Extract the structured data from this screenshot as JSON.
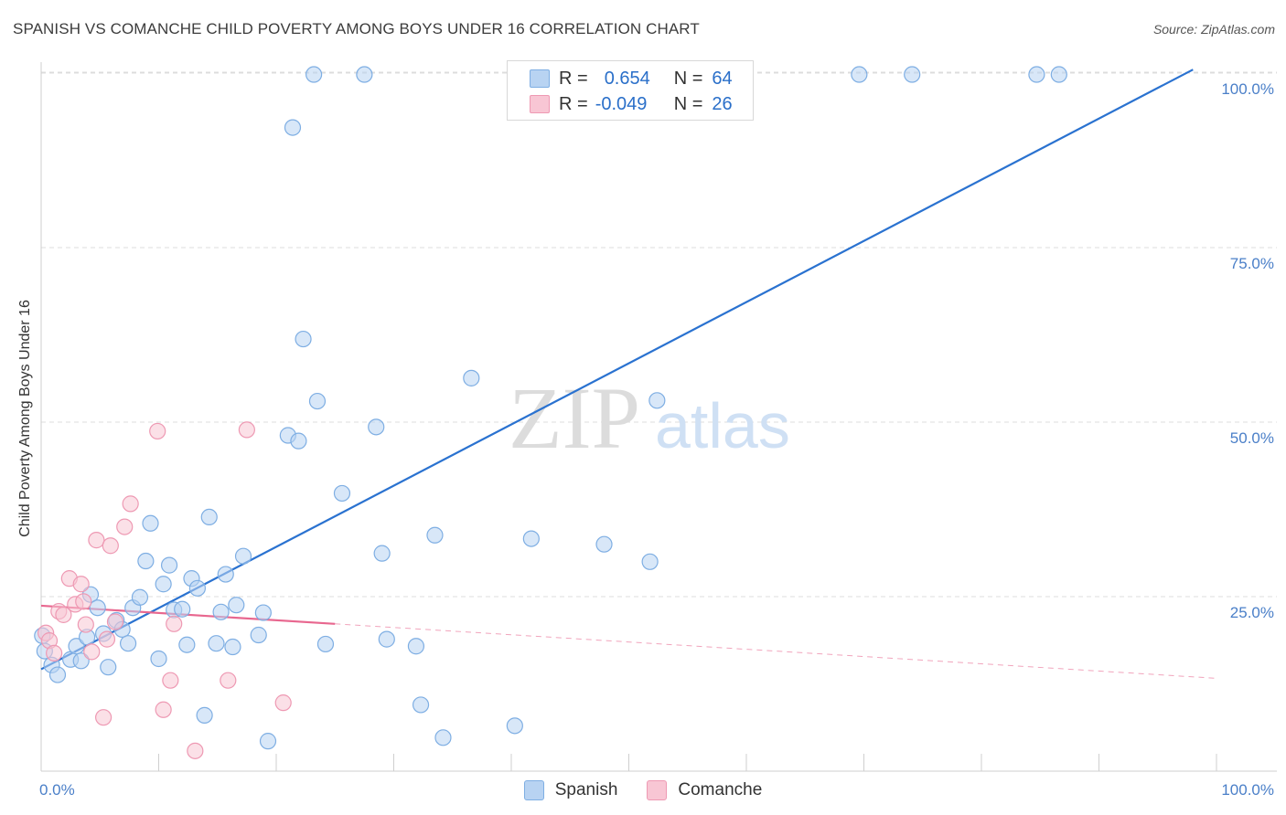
{
  "header": {
    "title": "SPANISH VS COMANCHE CHILD POVERTY AMONG BOYS UNDER 16 CORRELATION CHART",
    "source": "Source: ZipAtlas.com"
  },
  "watermark": {
    "zip": "ZIP",
    "atlas": "atlas"
  },
  "legend": {
    "rows": [
      {
        "r_label": "R =",
        "r_value": "0.654",
        "n_label": "N =",
        "n_value": "64"
      },
      {
        "r_label": "R =",
        "r_value": "-0.049",
        "n_label": "N =",
        "n_value": "26"
      }
    ]
  },
  "colors": {
    "spanish_fill": "#b8d3f2",
    "spanish_stroke": "#7eaee3",
    "spanish_line": "#2a72d0",
    "comanche_fill": "#f8c6d4",
    "comanche_stroke": "#ee99b3",
    "comanche_line": "#e8678f",
    "grid": "#dcdcdc",
    "tick_label": "#4a7fc8"
  },
  "chart_data": {
    "type": "scatter",
    "title": "SPANISH VS COMANCHE CHILD POVERTY AMONG BOYS UNDER 16 CORRELATION CHART",
    "xlabel": "",
    "ylabel": "Child Poverty Among Boys Under 16",
    "xlim": [
      0,
      100
    ],
    "ylim": [
      0,
      100
    ],
    "x_tick_labels": [
      "0.0%",
      "100.0%"
    ],
    "y_tick_labels": [
      "25.0%",
      "50.0%",
      "75.0%",
      "100.0%"
    ],
    "y_ticks": [
      25,
      50,
      75,
      100
    ],
    "grid": true,
    "legend_position": "bottom",
    "series": [
      {
        "name": "Spanish",
        "r": 0.654,
        "n": 64,
        "trend": {
          "x": [
            0,
            98
          ],
          "y": [
            14.6,
            100.5
          ],
          "dashed_to": null
        },
        "points": [
          {
            "x": 0.3,
            "y": 17.2
          },
          {
            "x": 0.9,
            "y": 15.2
          },
          {
            "x": 1.4,
            "y": 13.8
          },
          {
            "x": 2.5,
            "y": 16.0
          },
          {
            "x": 3.0,
            "y": 17.9
          },
          {
            "x": 3.4,
            "y": 15.8
          },
          {
            "x": 3.9,
            "y": 19.2
          },
          {
            "x": 4.2,
            "y": 25.3
          },
          {
            "x": 4.8,
            "y": 23.4
          },
          {
            "x": 5.3,
            "y": 19.7
          },
          {
            "x": 5.7,
            "y": 14.9
          },
          {
            "x": 6.4,
            "y": 21.6
          },
          {
            "x": 6.9,
            "y": 20.3
          },
          {
            "x": 7.4,
            "y": 18.3
          },
          {
            "x": 7.8,
            "y": 23.4
          },
          {
            "x": 8.4,
            "y": 24.9
          },
          {
            "x": 8.9,
            "y": 30.1
          },
          {
            "x": 9.3,
            "y": 35.5
          },
          {
            "x": 10.0,
            "y": 16.1
          },
          {
            "x": 10.4,
            "y": 26.8
          },
          {
            "x": 10.9,
            "y": 29.5
          },
          {
            "x": 11.3,
            "y": 23.1
          },
          {
            "x": 12.0,
            "y": 23.2
          },
          {
            "x": 12.4,
            "y": 18.1
          },
          {
            "x": 12.8,
            "y": 27.6
          },
          {
            "x": 13.3,
            "y": 26.2
          },
          {
            "x": 13.9,
            "y": 8.0
          },
          {
            "x": 14.3,
            "y": 36.4
          },
          {
            "x": 14.9,
            "y": 18.3
          },
          {
            "x": 15.3,
            "y": 22.8
          },
          {
            "x": 15.7,
            "y": 28.2
          },
          {
            "x": 16.3,
            "y": 17.8
          },
          {
            "x": 16.6,
            "y": 23.8
          },
          {
            "x": 17.2,
            "y": 30.8
          },
          {
            "x": 18.5,
            "y": 19.5
          },
          {
            "x": 18.9,
            "y": 22.7
          },
          {
            "x": 19.3,
            "y": 4.3
          },
          {
            "x": 21.0,
            "y": 48.1
          },
          {
            "x": 21.9,
            "y": 47.3
          },
          {
            "x": 22.3,
            "y": 61.9
          },
          {
            "x": 23.5,
            "y": 53.0
          },
          {
            "x": 25.6,
            "y": 39.8
          },
          {
            "x": 28.5,
            "y": 49.3
          },
          {
            "x": 29.0,
            "y": 31.2
          },
          {
            "x": 24.2,
            "y": 18.2
          },
          {
            "x": 29.4,
            "y": 18.9
          },
          {
            "x": 31.9,
            "y": 17.9
          },
          {
            "x": 32.3,
            "y": 9.5
          },
          {
            "x": 33.5,
            "y": 33.8
          },
          {
            "x": 34.2,
            "y": 4.8
          },
          {
            "x": 36.6,
            "y": 56.3
          },
          {
            "x": 40.3,
            "y": 6.5
          },
          {
            "x": 41.7,
            "y": 33.3
          },
          {
            "x": 47.9,
            "y": 32.5
          },
          {
            "x": 52.4,
            "y": 53.1
          },
          {
            "x": 51.8,
            "y": 30.0
          },
          {
            "x": 21.4,
            "y": 92.2
          },
          {
            "x": 23.2,
            "y": 99.8
          },
          {
            "x": 27.5,
            "y": 99.8
          },
          {
            "x": 69.6,
            "y": 99.8
          },
          {
            "x": 74.1,
            "y": 99.8
          },
          {
            "x": 84.7,
            "y": 99.8
          },
          {
            "x": 86.6,
            "y": 99.8
          },
          {
            "x": 0.1,
            "y": 19.4
          }
        ]
      },
      {
        "name": "Comanche",
        "r": -0.049,
        "n": 26,
        "trend": {
          "x": [
            0,
            25
          ],
          "y": [
            23.7,
            21.1
          ],
          "dashed_x": [
            25,
            100
          ],
          "dashed_y": [
            21.1,
            13.3
          ]
        },
        "points": [
          {
            "x": 0.4,
            "y": 19.8
          },
          {
            "x": 0.7,
            "y": 18.7
          },
          {
            "x": 1.1,
            "y": 16.9
          },
          {
            "x": 1.5,
            "y": 22.9
          },
          {
            "x": 1.9,
            "y": 22.4
          },
          {
            "x": 2.4,
            "y": 27.6
          },
          {
            "x": 2.9,
            "y": 23.9
          },
          {
            "x": 3.4,
            "y": 26.8
          },
          {
            "x": 3.6,
            "y": 24.3
          },
          {
            "x": 3.8,
            "y": 21.0
          },
          {
            "x": 4.3,
            "y": 17.1
          },
          {
            "x": 4.7,
            "y": 33.1
          },
          {
            "x": 5.3,
            "y": 7.7
          },
          {
            "x": 5.6,
            "y": 18.9
          },
          {
            "x": 5.9,
            "y": 32.3
          },
          {
            "x": 6.3,
            "y": 21.4
          },
          {
            "x": 7.1,
            "y": 35.0
          },
          {
            "x": 7.6,
            "y": 38.3
          },
          {
            "x": 9.9,
            "y": 48.7
          },
          {
            "x": 10.4,
            "y": 8.8
          },
          {
            "x": 11.0,
            "y": 13.0
          },
          {
            "x": 11.3,
            "y": 21.1
          },
          {
            "x": 13.1,
            "y": 2.9
          },
          {
            "x": 15.9,
            "y": 13.0
          },
          {
            "x": 17.5,
            "y": 48.9
          },
          {
            "x": 20.6,
            "y": 9.8
          }
        ]
      }
    ]
  }
}
